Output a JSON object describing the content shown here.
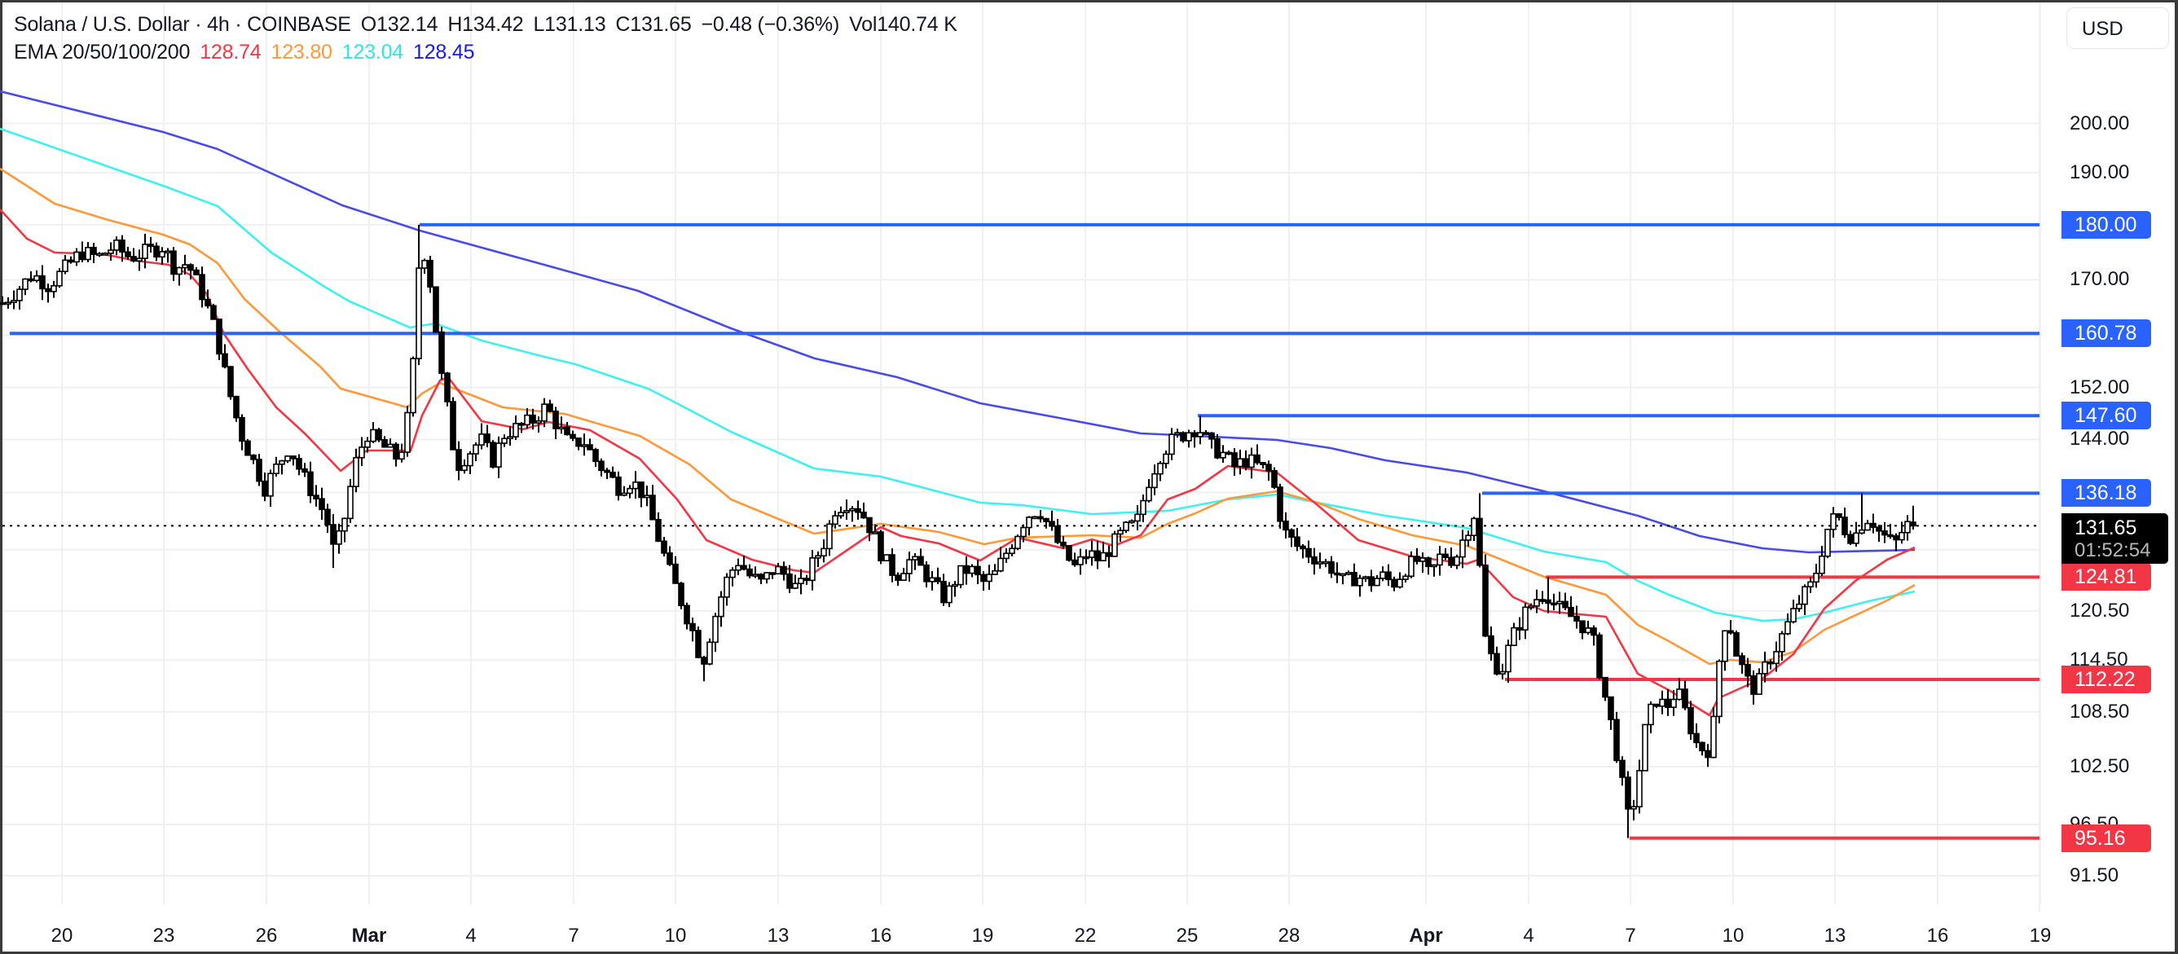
{
  "header": {
    "symbol": "Solana / U.S. Dollar · 4h · COINBASE",
    "open": "O132.14",
    "high": "H134.42",
    "low": "L131.13",
    "close": "C131.65",
    "change": "−0.48 (−0.36%)",
    "volume": "Vol140.74 K",
    "ema_label": "EMA 20/50/100/200",
    "ema_values": [
      "128.74",
      "123.80",
      "123.04",
      "128.45"
    ]
  },
  "currency_button": "USD",
  "price_axis": {
    "ticks": [
      "200.00",
      "190.00",
      "170.00",
      "152.00",
      "144.00",
      "120.50",
      "114.50",
      "108.50",
      "102.50",
      "96.50",
      "91.50"
    ],
    "tick_values": [
      200,
      190,
      170,
      152,
      144,
      120.5,
      114.5,
      108.5,
      102.5,
      96.5,
      91.5
    ],
    "grid_values": [
      200,
      190,
      180,
      170,
      160.5,
      152,
      144,
      136.3,
      128.4,
      120.5,
      114.5,
      108.5,
      102.5,
      96.5,
      91.5
    ],
    "current_price": "131.65",
    "countdown": "01:52:54"
  },
  "time_axis": {
    "labels": [
      {
        "text": "20",
        "x": 76,
        "bold": false
      },
      {
        "text": "23",
        "x": 201,
        "bold": false
      },
      {
        "text": "26",
        "x": 327,
        "bold": false
      },
      {
        "text": "Mar",
        "x": 453,
        "bold": true
      },
      {
        "text": "4",
        "x": 578,
        "bold": false
      },
      {
        "text": "7",
        "x": 704,
        "bold": false
      },
      {
        "text": "10",
        "x": 829,
        "bold": false
      },
      {
        "text": "13",
        "x": 955,
        "bold": false
      },
      {
        "text": "16",
        "x": 1081,
        "bold": false
      },
      {
        "text": "19",
        "x": 1206,
        "bold": false
      },
      {
        "text": "22",
        "x": 1332,
        "bold": false
      },
      {
        "text": "25",
        "x": 1457,
        "bold": false
      },
      {
        "text": "28",
        "x": 1582,
        "bold": false
      },
      {
        "text": "Apr",
        "x": 1750,
        "bold": true
      },
      {
        "text": "4",
        "x": 1876,
        "bold": false
      },
      {
        "text": "7",
        "x": 2001,
        "bold": false
      },
      {
        "text": "10",
        "x": 2127,
        "bold": false
      },
      {
        "text": "13",
        "x": 2252,
        "bold": false
      },
      {
        "text": "16",
        "x": 2378,
        "bold": false
      },
      {
        "text": "19",
        "x": 2504,
        "bold": false
      }
    ]
  },
  "colors": {
    "ema20": "#f23645",
    "ema50": "#ff9838",
    "ema100": "#3ff0f0",
    "ema200": "#4a4ae8",
    "level_blue": "#2962ff",
    "level_red": "#f23645",
    "candle": "#000000",
    "grid": "#f0f0f0"
  },
  "chart_data": {
    "type": "candlestick",
    "title": "Solana / U.S. Dollar · 4h · COINBASE",
    "scale": "log",
    "ylim": [
      88,
      215
    ],
    "x_range_dates": [
      "Feb 18",
      "Apr 15"
    ],
    "levels": [
      {
        "value": 180.0,
        "label": "180.00",
        "color": "blue",
        "start_x": 515
      },
      {
        "value": 160.78,
        "label": "160.78",
        "color": "blue",
        "start_x": 12
      },
      {
        "value": 147.6,
        "label": "147.60",
        "color": "blue",
        "start_x": 1470
      },
      {
        "value": 136.18,
        "label": "136.18",
        "color": "blue",
        "start_x": 1819
      },
      {
        "value": 124.81,
        "label": "124.81",
        "color": "red",
        "start_x": 1897
      },
      {
        "value": 112.22,
        "label": "112.22",
        "color": "red",
        "start_x": 1847
      },
      {
        "value": 95.16,
        "label": "95.16",
        "color": "red",
        "start_x": 2000
      }
    ],
    "last_ohlc": {
      "open": 132.14,
      "high": 134.42,
      "low": 131.13,
      "close": 131.65
    },
    "ema_last": {
      "ema20": 128.74,
      "ema50": 123.8,
      "ema100": 123.04,
      "ema200": 128.45
    },
    "price_path": [
      [
        3,
        166
      ],
      [
        20,
        168
      ],
      [
        40,
        171
      ],
      [
        60,
        169
      ],
      [
        80,
        172
      ],
      [
        100,
        175
      ],
      [
        120,
        174
      ],
      [
        140,
        176
      ],
      [
        160,
        174
      ],
      [
        180,
        175
      ],
      [
        200,
        176
      ],
      [
        215,
        172
      ],
      [
        230,
        173
      ],
      [
        250,
        167
      ],
      [
        265,
        161
      ],
      [
        280,
        152
      ],
      [
        295,
        145
      ],
      [
        310,
        141
      ],
      [
        325,
        137
      ],
      [
        340,
        140
      ],
      [
        355,
        143
      ],
      [
        370,
        139
      ],
      [
        385,
        136
      ],
      [
        400,
        133
      ],
      [
        410,
        128
      ],
      [
        420,
        131
      ],
      [
        435,
        140
      ],
      [
        450,
        145
      ],
      [
        470,
        143
      ],
      [
        490,
        141
      ],
      [
        505,
        150
      ],
      [
        512,
        170
      ],
      [
        518,
        177
      ],
      [
        530,
        168
      ],
      [
        540,
        155
      ],
      [
        550,
        148
      ],
      [
        560,
        140
      ],
      [
        575,
        142
      ],
      [
        590,
        144
      ],
      [
        605,
        141
      ],
      [
        620,
        145
      ],
      [
        640,
        146
      ],
      [
        655,
        147
      ],
      [
        670,
        149
      ],
      [
        685,
        146
      ],
      [
        700,
        143
      ],
      [
        715,
        144
      ],
      [
        730,
        141
      ],
      [
        745,
        139
      ],
      [
        760,
        137
      ],
      [
        775,
        138
      ],
      [
        790,
        136
      ],
      [
        805,
        131
      ],
      [
        820,
        126
      ],
      [
        835,
        122
      ],
      [
        850,
        118
      ],
      [
        862,
        114
      ],
      [
        875,
        119
      ],
      [
        890,
        124
      ],
      [
        905,
        127
      ],
      [
        920,
        125
      ],
      [
        935,
        124
      ],
      [
        950,
        126
      ],
      [
        965,
        125
      ],
      [
        980,
        123
      ],
      [
        995,
        126
      ],
      [
        1010,
        129
      ],
      [
        1025,
        134
      ],
      [
        1040,
        135
      ],
      [
        1055,
        134
      ],
      [
        1070,
        131
      ],
      [
        1085,
        127
      ],
      [
        1100,
        125
      ],
      [
        1115,
        127
      ],
      [
        1130,
        126
      ],
      [
        1145,
        124
      ],
      [
        1160,
        122
      ],
      [
        1175,
        125
      ],
      [
        1190,
        126
      ],
      [
        1205,
        124
      ],
      [
        1220,
        125
      ],
      [
        1240,
        129
      ],
      [
        1260,
        133
      ],
      [
        1275,
        134
      ],
      [
        1290,
        131
      ],
      [
        1305,
        128
      ],
      [
        1320,
        126
      ],
      [
        1335,
        128
      ],
      [
        1350,
        127
      ],
      [
        1365,
        129
      ],
      [
        1380,
        131
      ],
      [
        1395,
        132
      ],
      [
        1410,
        138
      ],
      [
        1425,
        142
      ],
      [
        1440,
        144
      ],
      [
        1455,
        145
      ],
      [
        1470,
        146
      ],
      [
        1485,
        143
      ],
      [
        1500,
        142
      ],
      [
        1515,
        140
      ],
      [
        1530,
        141
      ],
      [
        1545,
        140
      ],
      [
        1560,
        139
      ],
      [
        1575,
        131
      ],
      [
        1590,
        129
      ],
      [
        1605,
        128
      ],
      [
        1620,
        127
      ],
      [
        1635,
        126
      ],
      [
        1650,
        124
      ],
      [
        1665,
        125
      ],
      [
        1680,
        124
      ],
      [
        1695,
        125
      ],
      [
        1710,
        124
      ],
      [
        1725,
        126
      ],
      [
        1740,
        127
      ],
      [
        1755,
        125
      ],
      [
        1770,
        128
      ],
      [
        1785,
        127
      ],
      [
        1800,
        131
      ],
      [
        1812,
        134
      ],
      [
        1820,
        118
      ],
      [
        1830,
        115
      ],
      [
        1842,
        113
      ],
      [
        1855,
        117
      ],
      [
        1870,
        120
      ],
      [
        1885,
        122
      ],
      [
        1897,
        123
      ],
      [
        1910,
        121
      ],
      [
        1925,
        120
      ],
      [
        1940,
        119
      ],
      [
        1955,
        117
      ],
      [
        1968,
        111
      ],
      [
        1980,
        106
      ],
      [
        1992,
        100
      ],
      [
        2000,
        96.5
      ],
      [
        2010,
        101
      ],
      [
        2020,
        107
      ],
      [
        2032,
        110
      ],
      [
        2045,
        109
      ],
      [
        2058,
        111
      ],
      [
        2070,
        108
      ],
      [
        2082,
        105
      ],
      [
        2095,
        104
      ],
      [
        2105,
        108
      ],
      [
        2112,
        117
      ],
      [
        2120,
        120
      ],
      [
        2132,
        115
      ],
      [
        2145,
        112
      ],
      [
        2155,
        111
      ],
      [
        2168,
        114
      ],
      [
        2180,
        116
      ],
      [
        2195,
        119
      ],
      [
        2210,
        122
      ],
      [
        2225,
        124
      ],
      [
        2235,
        128
      ],
      [
        2245,
        132
      ],
      [
        2255,
        133
      ],
      [
        2265,
        131
      ],
      [
        2275,
        130
      ],
      [
        2285,
        132
      ],
      [
        2295,
        133
      ],
      [
        2305,
        131
      ],
      [
        2315,
        130
      ],
      [
        2325,
        129
      ],
      [
        2335,
        131
      ],
      [
        2343,
        132
      ],
      [
        2350,
        131.65
      ]
    ],
    "ema_paths_y": {
      "ema200": [
        [
          0,
          112
        ],
        [
          200,
          162
        ],
        [
          267,
          183
        ],
        [
          420,
          252
        ],
        [
          515,
          283
        ],
        [
          668,
          325
        ],
        [
          783,
          357
        ],
        [
          897,
          403
        ],
        [
          1000,
          440
        ],
        [
          1101,
          463
        ],
        [
          1203,
          495
        ],
        [
          1300,
          513
        ],
        [
          1400,
          532
        ],
        [
          1467,
          535
        ],
        [
          1567,
          540
        ],
        [
          1633,
          550
        ],
        [
          1700,
          565
        ],
        [
          1800,
          580
        ],
        [
          1895,
          603
        ],
        [
          2010,
          633
        ],
        [
          2086,
          658
        ],
        [
          2163,
          673
        ],
        [
          2220,
          678
        ],
        [
          2350,
          675
        ]
      ],
      "ema100": [
        [
          0,
          158
        ],
        [
          200,
          228
        ],
        [
          267,
          253
        ],
        [
          333,
          310
        ],
        [
          400,
          353
        ],
        [
          429,
          370
        ],
        [
          503,
          402
        ],
        [
          534,
          397
        ],
        [
          591,
          418
        ],
        [
          668,
          438
        ],
        [
          706,
          447
        ],
        [
          795,
          477
        ],
        [
          821,
          490
        ],
        [
          897,
          530
        ],
        [
          999,
          575
        ],
        [
          1081,
          585
        ],
        [
          1203,
          617
        ],
        [
          1254,
          620
        ],
        [
          1340,
          631
        ],
        [
          1433,
          627
        ],
        [
          1507,
          613
        ],
        [
          1567,
          607
        ],
        [
          1617,
          617
        ],
        [
          1700,
          633
        ],
        [
          1800,
          648
        ],
        [
          1895,
          677
        ],
        [
          1971,
          690
        ],
        [
          2010,
          713
        ],
        [
          2048,
          730
        ],
        [
          2105,
          752
        ],
        [
          2163,
          762
        ],
        [
          2201,
          760
        ],
        [
          2239,
          752
        ],
        [
          2297,
          737
        ],
        [
          2350,
          726
        ]
      ],
      "ema50": [
        [
          0,
          207
        ],
        [
          67,
          250
        ],
        [
          133,
          270
        ],
        [
          200,
          288
        ],
        [
          233,
          300
        ],
        [
          267,
          323
        ],
        [
          300,
          367
        ],
        [
          343,
          407
        ],
        [
          393,
          450
        ],
        [
          418,
          477
        ],
        [
          500,
          500
        ],
        [
          518,
          483
        ],
        [
          540,
          470
        ],
        [
          617,
          500
        ],
        [
          693,
          508
        ],
        [
          785,
          535
        ],
        [
          846,
          570
        ],
        [
          897,
          613
        ],
        [
          999,
          655
        ],
        [
          1081,
          643
        ],
        [
          1152,
          653
        ],
        [
          1208,
          668
        ],
        [
          1249,
          660
        ],
        [
          1340,
          657
        ],
        [
          1400,
          660
        ],
        [
          1433,
          643
        ],
        [
          1467,
          630
        ],
        [
          1507,
          612
        ],
        [
          1567,
          603
        ],
        [
          1617,
          617
        ],
        [
          1667,
          637
        ],
        [
          1733,
          657
        ],
        [
          1800,
          670
        ],
        [
          1818,
          677
        ],
        [
          1895,
          708
        ],
        [
          1971,
          730
        ],
        [
          2010,
          767
        ],
        [
          2048,
          787
        ],
        [
          2098,
          815
        ],
        [
          2124,
          810
        ],
        [
          2163,
          813
        ],
        [
          2201,
          800
        ],
        [
          2239,
          773
        ],
        [
          2316,
          737
        ],
        [
          2350,
          718
        ]
      ],
      "ema20": [
        [
          0,
          257
        ],
        [
          33,
          293
        ],
        [
          67,
          310
        ],
        [
          127,
          312
        ],
        [
          167,
          320
        ],
        [
          207,
          325
        ],
        [
          233,
          337
        ],
        [
          253,
          360
        ],
        [
          275,
          410
        ],
        [
          304,
          453
        ],
        [
          339,
          500
        ],
        [
          375,
          533
        ],
        [
          418,
          578
        ],
        [
          450,
          553
        ],
        [
          504,
          553
        ],
        [
          518,
          510
        ],
        [
          540,
          467
        ],
        [
          550,
          463
        ],
        [
          591,
          517
        ],
        [
          642,
          527
        ],
        [
          673,
          518
        ],
        [
          724,
          528
        ],
        [
          785,
          563
        ],
        [
          831,
          613
        ],
        [
          867,
          663
        ],
        [
          923,
          687
        ],
        [
          974,
          700
        ],
        [
          999,
          703
        ],
        [
          1081,
          647
        ],
        [
          1106,
          658
        ],
        [
          1152,
          667
        ],
        [
          1203,
          688
        ],
        [
          1249,
          660
        ],
        [
          1305,
          673
        ],
        [
          1340,
          662
        ],
        [
          1367,
          670
        ],
        [
          1400,
          657
        ],
        [
          1433,
          613
        ],
        [
          1467,
          600
        ],
        [
          1507,
          572
        ],
        [
          1567,
          580
        ],
        [
          1617,
          620
        ],
        [
          1667,
          663
        ],
        [
          1733,
          683
        ],
        [
          1800,
          692
        ],
        [
          1814,
          687
        ],
        [
          1857,
          733
        ],
        [
          1895,
          750
        ],
        [
          1971,
          757
        ],
        [
          2010,
          827
        ],
        [
          2048,
          847
        ],
        [
          2098,
          878
        ],
        [
          2109,
          857
        ],
        [
          2140,
          843
        ],
        [
          2163,
          833
        ],
        [
          2201,
          803
        ],
        [
          2239,
          747
        ],
        [
          2277,
          713
        ],
        [
          2316,
          687
        ],
        [
          2350,
          672
        ]
      ]
    }
  }
}
